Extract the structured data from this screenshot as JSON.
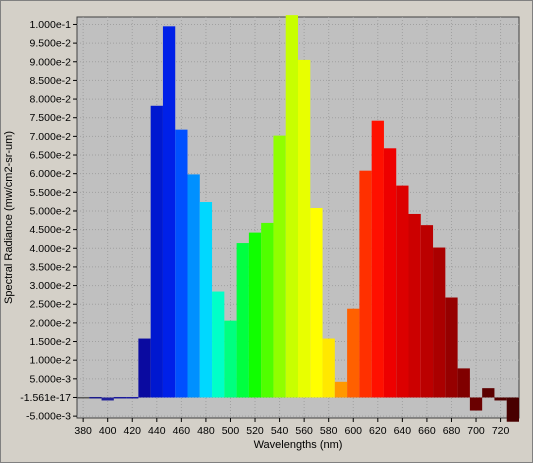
{
  "chart_data": {
    "type": "bar",
    "xlabel": "Wavelengths (nm)",
    "ylabel": "Spectral Radiance (mw/cm2-sr-um)",
    "xlim": [
      375,
      735
    ],
    "ylim": [
      -0.0055,
      0.102
    ],
    "grid": true,
    "x_ticks": [
      "380",
      "400",
      "420",
      "440",
      "460",
      "480",
      "500",
      "520",
      "540",
      "560",
      "580",
      "600",
      "620",
      "640",
      "660",
      "680",
      "700",
      "720"
    ],
    "y_ticks": [
      "1.000e-1",
      "9.500e-2",
      "9.000e-2",
      "8.500e-2",
      "8.000e-2",
      "7.500e-2",
      "7.000e-2",
      "6.500e-2",
      "6.000e-2",
      "5.500e-2",
      "5.000e-2",
      "4.500e-2",
      "4.000e-2",
      "3.500e-2",
      "3.000e-2",
      "2.500e-2",
      "2.000e-2",
      "1.500e-2",
      "1.000e-2",
      "5.000e-3",
      "-1.561e-17",
      "-5.000e-3"
    ],
    "bar_width_nm": 10,
    "x": [
      380,
      390,
      400,
      410,
      420,
      430,
      440,
      450,
      460,
      470,
      480,
      490,
      500,
      510,
      520,
      530,
      540,
      550,
      560,
      570,
      580,
      590,
      600,
      610,
      620,
      630,
      640,
      650,
      660,
      670,
      680,
      690,
      700,
      710,
      720,
      730
    ],
    "values": [
      0.0,
      -0.0002,
      -0.0008,
      -0.0003,
      0.0,
      0.0158,
      0.0782,
      0.0995,
      0.0718,
      0.0598,
      0.0524,
      0.0284,
      0.0206,
      0.0414,
      0.0442,
      0.0468,
      0.0702,
      0.1025,
      0.0905,
      0.0508,
      0.0158,
      0.0042,
      0.0238,
      0.0608,
      0.0742,
      0.0668,
      0.0568,
      0.0492,
      0.0462,
      0.0402,
      0.0268,
      0.0078,
      -0.0035,
      0.0025,
      -0.0008,
      -0.0065
    ],
    "colors": [
      "#5a5a5a",
      "#1a1a8a",
      "#20209a",
      "#1a1a9a",
      "#1c1ca0",
      "#0a0aa0",
      "#0018d0",
      "#0020e8",
      "#0050ff",
      "#0090ff",
      "#00d8ff",
      "#00ffc8",
      "#00ff80",
      "#00ff40",
      "#10ff00",
      "#50ff00",
      "#90ff00",
      "#c8ff00",
      "#e8ff00",
      "#ffff00",
      "#ffe800",
      "#ff9800",
      "#ff6000",
      "#ff3000",
      "#ff1000",
      "#ee0000",
      "#dc0000",
      "#cc0000",
      "#bb0000",
      "#aa0000",
      "#960000",
      "#800000",
      "#6a0000",
      "#5c0000",
      "#520000",
      "#480000"
    ]
  }
}
